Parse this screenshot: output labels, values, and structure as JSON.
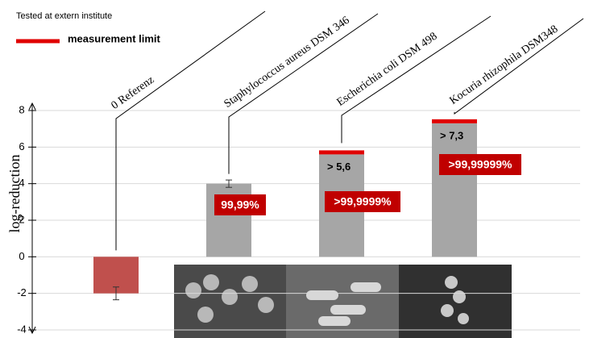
{
  "chart_data": {
    "type": "bar",
    "note": "Tested at extern institute",
    "legend": {
      "label": "measurement limit",
      "color": "#e00000"
    },
    "ylabel": "log-reduction",
    "categories": [
      "0 Referenz",
      "Staphylococcus aureus DSM 346",
      "Escherichia coli DSM 498",
      "Kocuria rhizophila DSM348"
    ],
    "values": [
      -2,
      4,
      5.6,
      7.3
    ],
    "errors": [
      0.35,
      0.2,
      null,
      null
    ],
    "colors": [
      "#c0504d",
      "#a6a6a6",
      "#a6a6a6",
      "#a6a6a6"
    ],
    "measurement_limit": [
      false,
      false,
      true,
      true
    ],
    "value_labels": [
      null,
      null,
      "> 5,6",
      "> 7,3"
    ],
    "reduction_labels": [
      null,
      "99,99%",
      ">99,9999%",
      ">99,99999%"
    ],
    "reduction_color": "#c00000",
    "ylim": [
      -4,
      8
    ],
    "yticks": [
      -4,
      -2,
      0,
      2,
      4,
      6,
      8
    ],
    "grid": true
  }
}
